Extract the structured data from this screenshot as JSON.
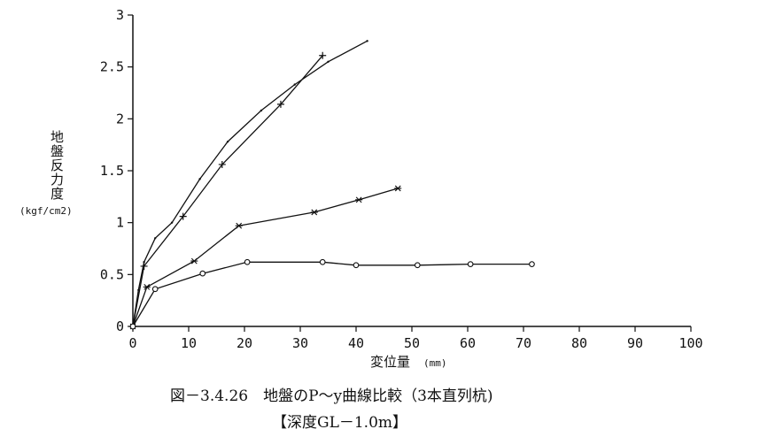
{
  "chart_data": {
    "type": "line",
    "xlabel": "変位量",
    "xunit": "(mm)",
    "ylabel_chars": [
      "地",
      "盤",
      "反",
      "力",
      "度"
    ],
    "yunit": "(kgf/cm2)",
    "xlim": [
      0,
      100
    ],
    "ylim": [
      0,
      3
    ],
    "xticks": [
      0,
      10,
      20,
      30,
      40,
      50,
      60,
      70,
      80,
      90,
      100
    ],
    "yticks": [
      0,
      0.5,
      1,
      1.5,
      2,
      2.5,
      3
    ],
    "ytick_labels": [
      "0",
      "0.5",
      "1",
      "1.5",
      "2",
      "2.5",
      "3"
    ],
    "grid": false,
    "series": [
      {
        "marker": "none",
        "x": [
          0,
          1,
          2,
          4,
          7,
          12,
          17,
          23,
          29,
          35,
          42
        ],
        "y": [
          0,
          0.35,
          0.62,
          0.85,
          1.0,
          1.42,
          1.78,
          2.08,
          2.33,
          2.55,
          2.75
        ]
      },
      {
        "marker": "plus",
        "x": [
          0,
          2,
          9,
          16,
          26.5,
          34
        ],
        "y": [
          0,
          0.58,
          1.06,
          1.56,
          2.14,
          2.61
        ]
      },
      {
        "marker": "asterisk",
        "x": [
          0,
          2.5,
          11,
          19,
          32.5,
          40.5,
          47.5
        ],
        "y": [
          0,
          0.38,
          0.63,
          0.97,
          1.1,
          1.22,
          1.33
        ]
      },
      {
        "marker": "circle",
        "x": [
          0,
          4,
          12.5,
          20.5,
          34,
          40,
          51,
          60.5,
          71.5
        ],
        "y": [
          0,
          0.36,
          0.51,
          0.62,
          0.62,
          0.59,
          0.59,
          0.6,
          0.6
        ]
      }
    ]
  },
  "caption": {
    "line1": "図－3.4.26　地盤のP～y曲線比較（3本直列杭)",
    "line2": "【深度GL－1.0m】"
  }
}
